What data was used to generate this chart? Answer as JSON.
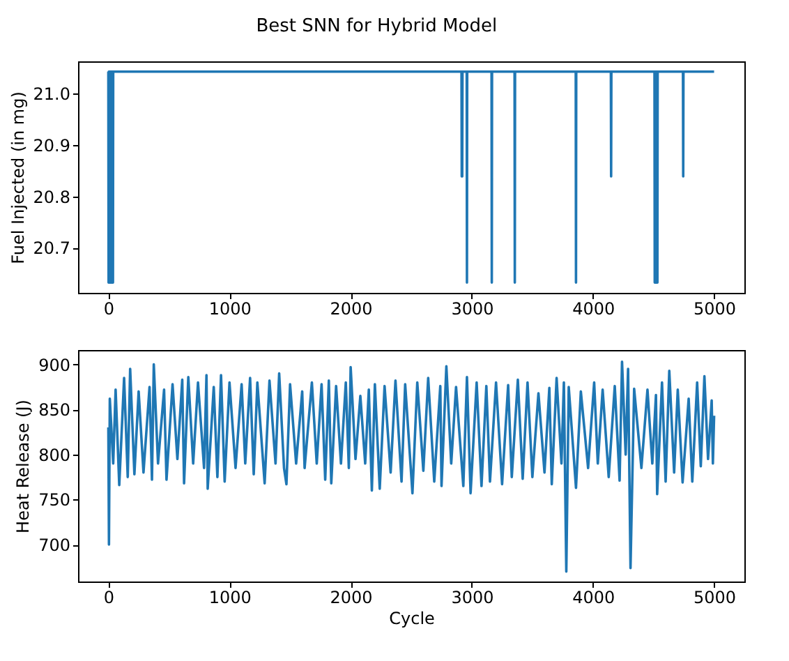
{
  "chart_data": [
    {
      "type": "line",
      "title": "Best SNN for Hybrid Model",
      "ylabel": "Fuel Injected (in mg)",
      "xlim": [
        -250,
        5250
      ],
      "xticks": [
        0,
        1000,
        2000,
        3000,
        4000,
        5000
      ],
      "ylim": [
        20.612,
        21.063
      ],
      "yticks": [
        20.7,
        20.8,
        20.9,
        {
          "value": 21.0,
          "label": "21.0"
        }
      ],
      "grid": false,
      "marker": "none",
      "line_style": "solid",
      "series": [
        {
          "color": "#1f77b4",
          "x": [
            0,
            2,
            4,
            6,
            8,
            10,
            12,
            14,
            16,
            18,
            20,
            22,
            24,
            26,
            28,
            30,
            32,
            34,
            36,
            38,
            40,
            2915,
            2917,
            2919,
            2921,
            2923,
            2958,
            2960,
            2962,
            3163,
            3165,
            3167,
            3353,
            3355,
            3357,
            3858,
            3860,
            3862,
            4148,
            4150,
            4152,
            4508,
            4510,
            4512,
            4516,
            4518,
            4520,
            4524,
            4526,
            4528,
            4532,
            4534,
            4536,
            4743,
            4745,
            4747,
            5000
          ],
          "values": [
            21.043,
            20.632,
            21.043,
            20.632,
            21.043,
            20.632,
            21.043,
            20.632,
            21.043,
            20.632,
            21.043,
            20.632,
            21.043,
            20.632,
            21.043,
            20.632,
            21.043,
            20.632,
            21.043,
            20.632,
            21.043,
            21.043,
            20.839,
            21.043,
            20.839,
            21.043,
            21.043,
            20.632,
            21.043,
            21.043,
            20.632,
            21.043,
            21.043,
            20.632,
            21.043,
            21.043,
            20.632,
            21.043,
            21.043,
            20.839,
            21.043,
            21.043,
            20.632,
            21.043,
            20.632,
            21.043,
            20.632,
            21.043,
            20.632,
            21.043,
            20.632,
            21.043,
            21.043,
            21.043,
            20.839,
            21.043,
            21.043
          ]
        }
      ]
    },
    {
      "type": "line",
      "xlabel": "Cycle",
      "ylabel": "Heat Release (J)",
      "xlim": [
        -250,
        5250
      ],
      "xticks": [
        0,
        1000,
        2000,
        3000,
        4000,
        5000
      ],
      "ylim": [
        659,
        916
      ],
      "yticks": [
        700,
        750,
        800,
        850,
        900
      ],
      "grid": false,
      "marker": "none",
      "line_style": "solid",
      "series": [
        {
          "color": "#1f77b4",
          "x": [
            0,
            5,
            12,
            40,
            60,
            90,
            130,
            160,
            180,
            215,
            250,
            290,
            340,
            360,
            375,
            410,
            460,
            480,
            530,
            570,
            610,
            625,
            660,
            700,
            740,
            790,
            810,
            820,
            870,
            900,
            930,
            960,
            1000,
            1050,
            1100,
            1130,
            1170,
            1200,
            1230,
            1290,
            1330,
            1380,
            1410,
            1450,
            1470,
            1500,
            1550,
            1600,
            1620,
            1680,
            1720,
            1760,
            1790,
            1820,
            1840,
            1880,
            1920,
            1960,
            1985,
            2000,
            2040,
            2080,
            2120,
            2150,
            2175,
            2200,
            2240,
            2280,
            2330,
            2370,
            2420,
            2450,
            2510,
            2550,
            2600,
            2640,
            2690,
            2740,
            2750,
            2790,
            2830,
            2870,
            2930,
            2960,
            2990,
            3040,
            3080,
            3120,
            3150,
            3200,
            3250,
            3300,
            3330,
            3380,
            3420,
            3460,
            3500,
            3550,
            3600,
            3640,
            3660,
            3700,
            3740,
            3760,
            3780,
            3800,
            3860,
            3900,
            3960,
            4010,
            4040,
            4080,
            4130,
            4180,
            4220,
            4240,
            4270,
            4290,
            4310,
            4340,
            4400,
            4450,
            4490,
            4520,
            4530,
            4570,
            4600,
            4630,
            4670,
            4700,
            4740,
            4790,
            4820,
            4860,
            4890,
            4920,
            4950,
            4980,
            4990,
            5000
          ],
          "values": [
            830,
            700,
            862,
            790,
            872,
            766,
            885,
            775,
            895,
            778,
            870,
            780,
            875,
            772,
            900,
            790,
            872,
            772,
            878,
            795,
            883,
            768,
            886,
            790,
            880,
            785,
            888,
            762,
            875,
            775,
            888,
            770,
            880,
            785,
            878,
            790,
            885,
            778,
            880,
            768,
            882,
            790,
            890,
            785,
            767,
            878,
            790,
            870,
            785,
            880,
            790,
            878,
            772,
            882,
            768,
            876,
            790,
            880,
            785,
            897,
            795,
            865,
            790,
            872,
            760,
            878,
            762,
            876,
            780,
            882,
            770,
            878,
            757,
            880,
            782,
            885,
            770,
            876,
            765,
            898,
            790,
            875,
            765,
            886,
            757,
            880,
            765,
            876,
            770,
            880,
            767,
            877,
            775,
            883,
            773,
            880,
            775,
            868,
            780,
            874,
            767,
            885,
            790,
            880,
            670,
            875,
            763,
            870,
            785,
            880,
            790,
            872,
            775,
            876,
            771,
            903,
            800,
            895,
            674,
            873,
            785,
            872,
            790,
            866,
            756,
            880,
            770,
            893,
            780,
            872,
            769,
            862,
            770,
            880,
            787,
            887,
            795,
            860,
            790,
            843
          ]
        }
      ]
    }
  ]
}
